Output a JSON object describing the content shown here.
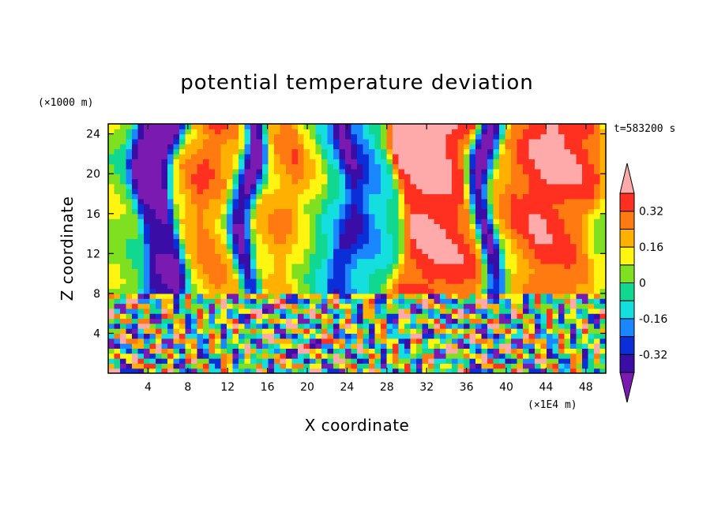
{
  "chart_data": {
    "type": "heatmap",
    "title": "potential temperature deviation",
    "xlabel": "X coordinate",
    "ylabel": "Z coordinate",
    "x_unit": "(×1E4 m)",
    "y_unit": "(×1000 m)",
    "time_label": "t=583200 s",
    "xlim": [
      0,
      50
    ],
    "ylim": [
      0,
      25
    ],
    "x_ticks": [
      4,
      8,
      12,
      16,
      20,
      24,
      28,
      32,
      36,
      40,
      44,
      48
    ],
    "y_ticks": [
      4,
      8,
      12,
      16,
      20,
      24
    ],
    "colorbar": {
      "levels": [
        -0.48,
        -0.4,
        -0.32,
        -0.24,
        -0.16,
        -0.08,
        0,
        0.08,
        0.16,
        0.24,
        0.32,
        0.4,
        0.48
      ],
      "labels": [
        "0.32",
        "0.16",
        "0",
        "-0.16",
        "-0.32"
      ],
      "label_values": [
        0.32,
        0.16,
        0,
        -0.16,
        -0.32
      ],
      "colors": [
        "#7a1ab0",
        "#3a0ea6",
        "#0a2fd8",
        "#1a86ff",
        "#15dede",
        "#10d890",
        "#7ee020",
        "#fff510",
        "#ffb000",
        "#ff7a10",
        "#ff3020",
        "#ffaaaa"
      ],
      "extend": "both"
    },
    "upper_column_profile": {
      "x": [
        0,
        2,
        4,
        6,
        8,
        10,
        12,
        14,
        16,
        18,
        20,
        22,
        24,
        26,
        28,
        30,
        32,
        34,
        36,
        38,
        40,
        42,
        44,
        46,
        48,
        50
      ],
      "value": [
        0.08,
        0.02,
        -0.46,
        -0.5,
        0.2,
        0.33,
        0.22,
        -0.48,
        0.2,
        0.28,
        0.12,
        -0.1,
        -0.4,
        -0.2,
        -0.08,
        0.44,
        0.48,
        0.45,
        0.36,
        -0.48,
        0.22,
        0.36,
        0.44,
        0.4,
        0.33,
        0.08
      ]
    },
    "boundary_layer_top": 8
  }
}
